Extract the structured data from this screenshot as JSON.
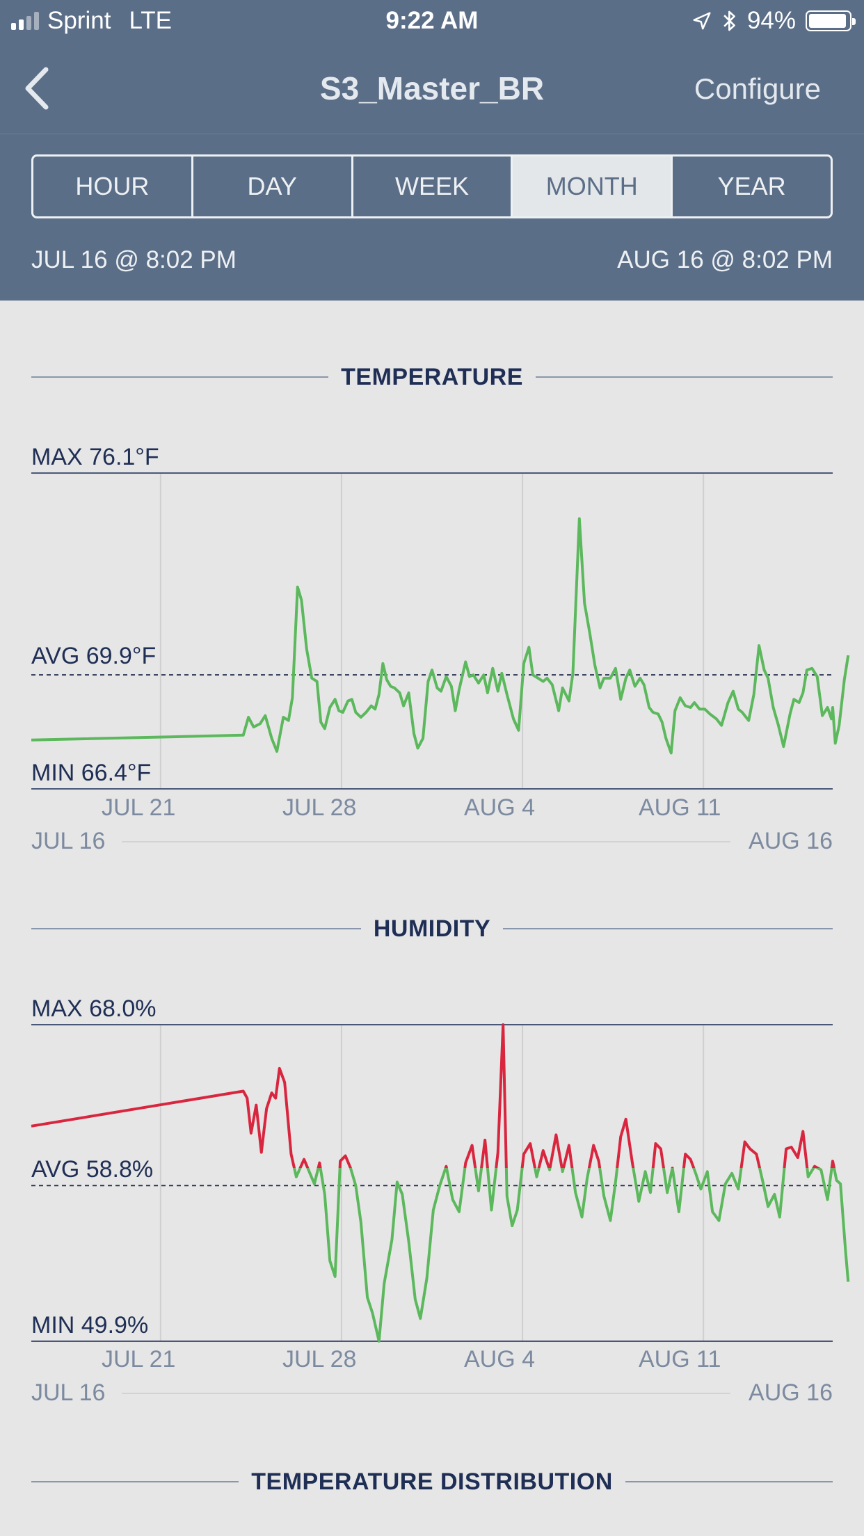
{
  "status_bar": {
    "carrier": "Sprint",
    "network": "LTE",
    "time": "9:22 AM",
    "battery_text": "94%",
    "battery_level": 0.94,
    "icons": [
      "signal-icon",
      "location-arrow-icon",
      "bluetooth-icon",
      "battery-icon"
    ]
  },
  "nav": {
    "back_icon": "chevron-left-icon",
    "title": "S3_Master_BR",
    "configure_label": "Configure"
  },
  "range_tabs": [
    "HOUR",
    "DAY",
    "WEEK",
    "MONTH",
    "YEAR"
  ],
  "selected_tab": "MONTH",
  "date_range": {
    "start": "JUL 16 @ 8:02 PM",
    "end": "AUG 16 @ 8:02 PM"
  },
  "sections": {
    "temperature": "TEMPERATURE",
    "humidity": "HUMIDITY",
    "distribution": "TEMPERATURE DISTRIBUTION"
  },
  "colors": {
    "header_bg": "#5b6e87",
    "page_bg": "#e6e6e6",
    "text_dark": "#1f2e55",
    "line_green": "#5cb85c",
    "line_red": "#d9263f"
  },
  "chart_data": [
    {
      "type": "line",
      "title": "TEMPERATURE",
      "max_label": "MAX 76.1°F",
      "avg_label": "AVG 69.9°F",
      "min_label": "MIN 66.4°F",
      "ylim": [
        66.4,
        76.1
      ],
      "avg": 69.9,
      "x_ticks": [
        "JUL 21",
        "JUL 28",
        "AUG 4",
        "AUG 11"
      ],
      "x_range_labels": [
        "JUL 16",
        "AUG 16"
      ],
      "xlim": [
        0,
        31
      ],
      "grid": "vertical",
      "series": [
        {
          "color": "#5cb85c",
          "points": [
            [
              0,
              67.9
            ],
            [
              8.2,
              68.05
            ],
            [
              8.4,
              68.6
            ],
            [
              8.6,
              68.3
            ],
            [
              8.85,
              68.4
            ],
            [
              9.05,
              68.65
            ],
            [
              9.3,
              67.95
            ],
            [
              9.5,
              67.55
            ],
            [
              9.75,
              68.6
            ],
            [
              9.95,
              68.5
            ],
            [
              10.1,
              69.2
            ],
            [
              10.3,
              72.6
            ],
            [
              10.45,
              72.2
            ],
            [
              10.65,
              70.7
            ],
            [
              10.85,
              69.8
            ],
            [
              11.05,
              69.7
            ],
            [
              11.2,
              68.45
            ],
            [
              11.35,
              68.25
            ],
            [
              11.55,
              68.9
            ],
            [
              11.75,
              69.15
            ],
            [
              11.9,
              68.8
            ],
            [
              12.05,
              68.75
            ],
            [
              12.25,
              69.1
            ],
            [
              12.4,
              69.15
            ],
            [
              12.55,
              68.75
            ],
            [
              12.75,
              68.6
            ],
            [
              12.95,
              68.75
            ],
            [
              13.15,
              68.95
            ],
            [
              13.3,
              68.85
            ],
            [
              13.45,
              69.3
            ],
            [
              13.6,
              70.25
            ],
            [
              13.75,
              69.75
            ],
            [
              13.9,
              69.55
            ],
            [
              14.05,
              69.5
            ],
            [
              14.25,
              69.35
            ],
            [
              14.4,
              68.95
            ],
            [
              14.6,
              69.35
            ],
            [
              14.8,
              68.1
            ],
            [
              14.95,
              67.65
            ],
            [
              15.15,
              67.95
            ],
            [
              15.35,
              69.7
            ],
            [
              15.5,
              70.05
            ],
            [
              15.7,
              69.5
            ],
            [
              15.85,
              69.4
            ],
            [
              16.05,
              69.85
            ],
            [
              16.25,
              69.55
            ],
            [
              16.4,
              68.8
            ],
            [
              16.55,
              69.45
            ],
            [
              16.8,
              70.3
            ],
            [
              16.95,
              69.85
            ],
            [
              17.1,
              69.9
            ],
            [
              17.3,
              69.65
            ],
            [
              17.5,
              69.9
            ],
            [
              17.65,
              69.35
            ],
            [
              17.85,
              70.1
            ],
            [
              18.05,
              69.4
            ],
            [
              18.2,
              69.95
            ],
            [
              18.4,
              69.3
            ],
            [
              18.65,
              68.55
            ],
            [
              18.85,
              68.2
            ],
            [
              19.05,
              70.25
            ],
            [
              19.25,
              70.75
            ],
            [
              19.4,
              69.9
            ],
            [
              19.6,
              69.8
            ],
            [
              19.8,
              69.7
            ],
            [
              19.95,
              69.8
            ],
            [
              20.15,
              69.6
            ],
            [
              20.4,
              68.8
            ],
            [
              20.55,
              69.5
            ],
            [
              20.8,
              69.1
            ],
            [
              20.95,
              69.95
            ],
            [
              21.2,
              74.7
            ],
            [
              21.4,
              72.1
            ],
            [
              21.6,
              71.2
            ],
            [
              21.8,
              70.2
            ],
            [
              22,
              69.5
            ],
            [
              22.15,
              69.8
            ],
            [
              22.4,
              69.8
            ],
            [
              22.6,
              70.1
            ],
            [
              22.8,
              69.15
            ],
            [
              23,
              69.8
            ],
            [
              23.15,
              70.05
            ],
            [
              23.35,
              69.55
            ],
            [
              23.55,
              69.8
            ],
            [
              23.7,
              69.6
            ],
            [
              23.9,
              68.9
            ],
            [
              24.05,
              68.75
            ],
            [
              24.25,
              68.7
            ],
            [
              24.4,
              68.45
            ],
            [
              24.55,
              67.95
            ],
            [
              24.75,
              67.5
            ],
            [
              24.9,
              68.8
            ],
            [
              25.1,
              69.2
            ],
            [
              25.3,
              68.95
            ],
            [
              25.5,
              68.9
            ],
            [
              25.65,
              69.05
            ],
            [
              25.85,
              68.85
            ],
            [
              26.05,
              68.85
            ],
            [
              26.25,
              68.7
            ],
            [
              26.5,
              68.55
            ],
            [
              26.7,
              68.35
            ],
            [
              26.95,
              69.05
            ],
            [
              27.15,
              69.4
            ],
            [
              27.35,
              68.85
            ],
            [
              27.5,
              68.75
            ],
            [
              27.75,
              68.5
            ],
            [
              27.95,
              69.3
            ],
            [
              28.15,
              70.8
            ],
            [
              28.35,
              70.05
            ],
            [
              28.5,
              69.8
            ],
            [
              28.7,
              68.9
            ],
            [
              28.9,
              68.35
            ],
            [
              29.1,
              67.7
            ],
            [
              29.35,
              68.7
            ],
            [
              29.5,
              69.15
            ],
            [
              29.7,
              69.05
            ],
            [
              29.85,
              69.35
            ],
            [
              30,
              70.05
            ],
            [
              30.2,
              70.1
            ],
            [
              30.4,
              69.85
            ],
            [
              30.6,
              68.65
            ],
            [
              30.8,
              68.9
            ],
            [
              30.95,
              68.55
            ],
            [
              31,
              68.9
            ],
            [
              31.1,
              67.8
            ],
            [
              31.25,
              68.35
            ],
            [
              31.45,
              69.75
            ],
            [
              31.6,
              70.5
            ]
          ]
        }
      ]
    },
    {
      "type": "line",
      "title": "HUMIDITY",
      "max_label": "MAX 68.0%",
      "avg_label": "AVG 58.8%",
      "min_label": "MIN 49.9%",
      "ylim": [
        49.9,
        68.0
      ],
      "avg": 58.8,
      "x_ticks": [
        "JUL 21",
        "JUL 28",
        "AUG 4",
        "AUG 11"
      ],
      "x_range_labels": [
        "JUL 16",
        "AUG 16"
      ],
      "xlim": [
        0,
        31
      ],
      "grid": "vertical",
      "series": [
        {
          "color": "#d9263f",
          "points": [
            [
              0,
              62.2
            ],
            [
              8.2,
              64.2
            ],
            [
              8.35,
              63.8
            ],
            [
              8.5,
              61.8
            ],
            [
              8.7,
              63.4
            ],
            [
              8.9,
              60.7
            ],
            [
              9.1,
              63.2
            ],
            [
              9.3,
              64.1
            ],
            [
              9.45,
              63.8
            ],
            [
              9.6,
              65.5
            ],
            [
              9.8,
              64.7
            ],
            [
              10.05,
              60.6
            ],
            [
              10.25,
              59.3
            ],
            [
              10.55,
              60.3
            ],
            [
              10.75,
              59.6
            ],
            [
              10.95,
              58.9
            ],
            [
              11.15,
              60.1
            ],
            [
              11.35,
              58.3
            ],
            [
              11.55,
              54.5
            ],
            [
              11.75,
              53.6
            ],
            [
              11.95,
              60.2
            ],
            [
              12.15,
              60.5
            ],
            [
              12.35,
              59.8
            ],
            [
              12.55,
              58.8
            ],
            [
              12.75,
              56.7
            ],
            [
              13,
              52.4
            ],
            [
              13.2,
              51.5
            ],
            [
              13.45,
              49.9
            ],
            [
              13.65,
              53.2
            ],
            [
              13.95,
              55.7
            ],
            [
              14.15,
              59.0
            ],
            [
              14.35,
              58.3
            ],
            [
              14.6,
              55.6
            ],
            [
              14.85,
              52.3
            ],
            [
              15.05,
              51.2
            ],
            [
              15.3,
              53.5
            ],
            [
              15.55,
              57.4
            ],
            [
              15.8,
              58.8
            ],
            [
              16.05,
              59.9
            ],
            [
              16.3,
              58.0
            ],
            [
              16.55,
              57.3
            ],
            [
              16.8,
              60.1
            ],
            [
              17.05,
              61.1
            ],
            [
              17.3,
              58.5
            ],
            [
              17.55,
              61.4
            ],
            [
              17.8,
              57.4
            ],
            [
              18.05,
              60.7
            ],
            [
              18.25,
              68.0
            ],
            [
              18.4,
              58.2
            ],
            [
              18.6,
              56.5
            ],
            [
              18.8,
              57.4
            ],
            [
              19.05,
              60.6
            ],
            [
              19.3,
              61.2
            ],
            [
              19.55,
              59.3
            ],
            [
              19.8,
              60.8
            ],
            [
              20.05,
              59.7
            ],
            [
              20.3,
              61.7
            ],
            [
              20.55,
              59.6
            ],
            [
              20.8,
              61.1
            ],
            [
              21.05,
              58.4
            ],
            [
              21.3,
              57.0
            ],
            [
              21.5,
              59.2
            ],
            [
              21.75,
              61.1
            ],
            [
              21.95,
              60.2
            ],
            [
              22.15,
              58.2
            ],
            [
              22.4,
              56.8
            ],
            [
              22.6,
              59.0
            ],
            [
              22.8,
              61.6
            ],
            [
              23,
              62.6
            ],
            [
              23.25,
              60.1
            ],
            [
              23.5,
              57.9
            ],
            [
              23.75,
              59.6
            ],
            [
              23.95,
              58.4
            ],
            [
              24.15,
              61.2
            ],
            [
              24.35,
              60.9
            ],
            [
              24.6,
              58.4
            ],
            [
              24.8,
              59.8
            ],
            [
              25.05,
              57.3
            ],
            [
              25.3,
              60.6
            ],
            [
              25.5,
              60.3
            ],
            [
              25.7,
              59.5
            ],
            [
              25.9,
              58.6
            ],
            [
              26.15,
              59.6
            ],
            [
              26.35,
              57.3
            ],
            [
              26.6,
              56.8
            ],
            [
              26.85,
              58.9
            ],
            [
              27.1,
              59.5
            ],
            [
              27.35,
              58.6
            ],
            [
              27.6,
              61.3
            ],
            [
              27.8,
              60.9
            ],
            [
              28.05,
              60.6
            ],
            [
              28.3,
              59.0
            ],
            [
              28.5,
              57.6
            ],
            [
              28.75,
              58.3
            ],
            [
              28.95,
              57.0
            ],
            [
              29.2,
              60.9
            ],
            [
              29.4,
              61.0
            ],
            [
              29.65,
              60.4
            ],
            [
              29.85,
              61.9
            ],
            [
              30.05,
              59.3
            ],
            [
              30.3,
              59.9
            ],
            [
              30.55,
              59.7
            ],
            [
              30.8,
              58.0
            ],
            [
              31,
              60.2
            ],
            [
              31.15,
              59.1
            ],
            [
              31.3,
              58.9
            ],
            [
              31.5,
              55.0
            ],
            [
              31.6,
              53.3
            ]
          ]
        }
      ]
    }
  ]
}
